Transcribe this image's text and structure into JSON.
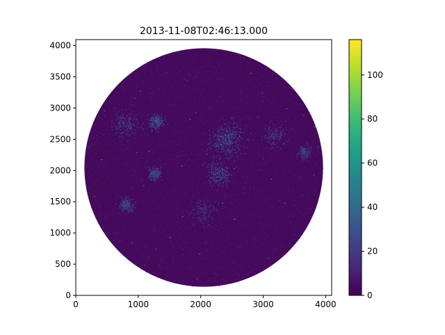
{
  "chart_data": {
    "type": "heatmap",
    "title": "2013-11-08T02:46:13.000",
    "xlabel": "",
    "ylabel": "",
    "xlim": [
      0,
      4096
    ],
    "ylim": [
      0,
      4096
    ],
    "x_ticks": [
      0,
      1000,
      2000,
      3000,
      4000
    ],
    "y_ticks": [
      0,
      500,
      1000,
      1500,
      2000,
      2500,
      3000,
      3500,
      4000
    ],
    "disk": {
      "center_x": 2048,
      "center_y": 2048,
      "radius": 1910
    },
    "colorbar": {
      "colormap": "viridis",
      "range": [
        0,
        116
      ],
      "ticks": [
        0,
        20,
        40,
        60,
        80,
        100
      ]
    },
    "background_value": 3,
    "bright_regions": [
      {
        "x": 2400,
        "y": 2500,
        "spread": 260,
        "intensity": 0.9
      },
      {
        "x": 2300,
        "y": 1950,
        "spread": 180,
        "intensity": 0.6
      },
      {
        "x": 800,
        "y": 2750,
        "spread": 220,
        "intensity": 0.45
      },
      {
        "x": 1280,
        "y": 2780,
        "spread": 120,
        "intensity": 0.55
      },
      {
        "x": 1260,
        "y": 1950,
        "spread": 90,
        "intensity": 0.5
      },
      {
        "x": 800,
        "y": 1450,
        "spread": 110,
        "intensity": 0.45
      },
      {
        "x": 3200,
        "y": 2550,
        "spread": 180,
        "intensity": 0.35
      },
      {
        "x": 3650,
        "y": 2300,
        "spread": 100,
        "intensity": 0.35
      },
      {
        "x": 2050,
        "y": 1350,
        "spread": 200,
        "intensity": 0.3
      }
    ]
  },
  "colors": {
    "viridis": [
      "#440154",
      "#482878",
      "#3e4989",
      "#31688e",
      "#26828e",
      "#1f9e89",
      "#35b779",
      "#6ece58",
      "#b5de2b",
      "#fde725"
    ],
    "axis": "#000000"
  }
}
